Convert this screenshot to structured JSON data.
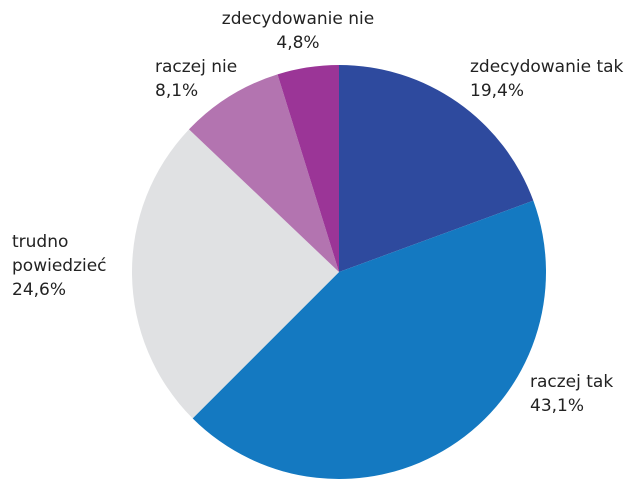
{
  "chart_data": {
    "type": "pie",
    "categories": [
      "zdecydowanie tak",
      "raczej tak",
      "trudno powiedzieć",
      "raczej nie",
      "zdecydowanie nie"
    ],
    "values": [
      19.4,
      43.1,
      24.6,
      8.1,
      4.8
    ],
    "value_labels": [
      "19,4%",
      "43,1%",
      "24,6%",
      "8,1%",
      "4,8%"
    ],
    "colors": [
      "#2e4a9e",
      "#1479c1",
      "#e0e1e3",
      "#b374b0",
      "#9b3597"
    ]
  }
}
